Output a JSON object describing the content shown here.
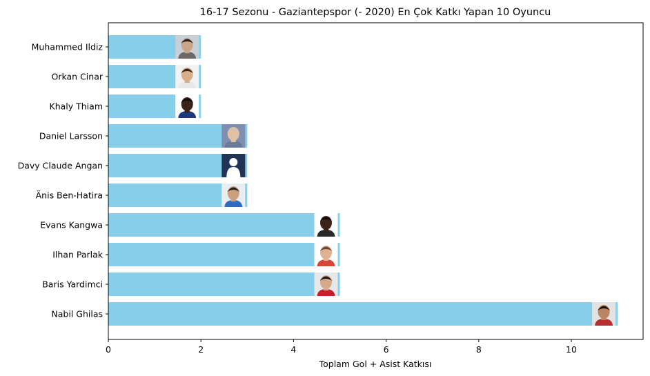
{
  "chart_data": {
    "type": "bar",
    "orientation": "horizontal",
    "title": "16-17 Sezonu - Gaziantepspor (- 2020) En Çok Katkı Yapan 10 Oyuncu",
    "xlabel": "Toplam Gol + Asist Katkısı",
    "ylabel": "",
    "xlim": [
      0,
      11.55
    ],
    "xticks": [
      "0",
      "2",
      "4",
      "6",
      "8",
      "10"
    ],
    "grid": false,
    "bar_color": "#87CEEB",
    "categories": [
      "Muhammed Ildiz",
      "Orkan Cinar",
      "Khaly Thiam",
      "Daniel Larsson",
      "Davy Claude Angan",
      "Änis Ben-Hatira",
      "Evans Kangwa",
      "Ilhan Parlak",
      "Baris Yardimci",
      "Nabil Ghilas"
    ],
    "values": [
      2,
      2,
      2,
      3,
      3,
      3,
      5,
      5,
      5,
      11
    ],
    "player_photos": [
      {
        "player": "Muhammed Ildiz",
        "icon": "player-face-photo",
        "skin": "#c9a58a",
        "hair": "#2b2420",
        "shirt": "#6f6a68",
        "bg": "#c9cfd6"
      },
      {
        "player": "Orkan Cinar",
        "icon": "player-face-photo",
        "skin": "#d6ae8c",
        "hair": "#3a2518",
        "shirt": "#e8e8e8",
        "bg": "#f2f2f2"
      },
      {
        "player": "Khaly Thiam",
        "icon": "player-face-photo",
        "skin": "#3a2418",
        "hair": "#140c08",
        "shirt": "#1e3a7a",
        "bg": "#ffffff"
      },
      {
        "player": "Daniel Larsson",
        "icon": "player-face-photo",
        "skin": "#e2c0a6",
        "hair": "#cfc2b4",
        "shirt": "#6a7b99",
        "bg": "#7f8fb0"
      },
      {
        "player": "Davy Claude Angan",
        "icon": "player-silhouette",
        "skin": "#ffffff",
        "hair": "#ffffff",
        "shirt": "#ffffff",
        "bg": "#1f3457"
      },
      {
        "player": "Änis Ben-Hatira",
        "icon": "player-face-photo",
        "skin": "#caa07e",
        "hair": "#2a1e16",
        "shirt": "#2f6bbf",
        "bg": "#e9edf0"
      },
      {
        "player": "Evans Kangwa",
        "icon": "player-face-photo",
        "skin": "#3b2519",
        "hair": "#120b07",
        "shirt": "#2a2a2a",
        "bg": "#ffffff"
      },
      {
        "player": "Ilhan Parlak",
        "icon": "player-face-photo",
        "skin": "#e0b294",
        "hair": "#6a4a32",
        "shirt": "#d8453a",
        "bg": "#ffffff"
      },
      {
        "player": "Baris Yardimci",
        "icon": "player-face-photo",
        "skin": "#d6a98a",
        "hair": "#1e1612",
        "shirt": "#c8202a",
        "bg": "#e6e8ea"
      },
      {
        "player": "Nabil Ghilas",
        "icon": "player-face-photo",
        "skin": "#b98565",
        "hair": "#1c120c",
        "shirt": "#b82d30",
        "bg": "#e2e2e2"
      }
    ]
  }
}
